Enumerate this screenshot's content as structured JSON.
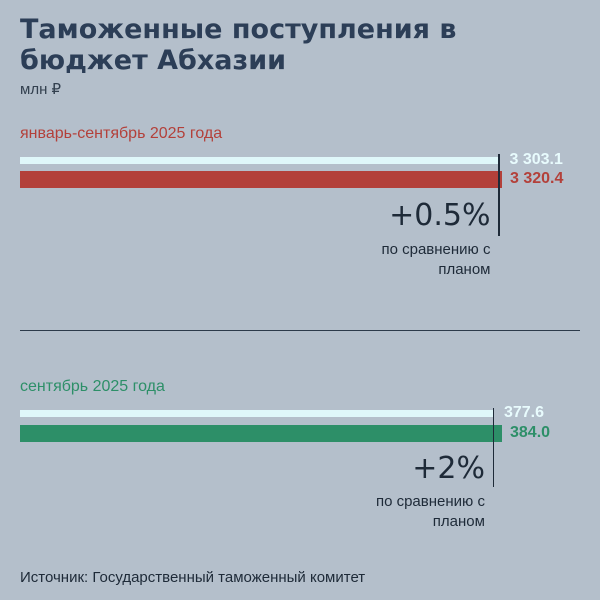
{
  "title": "Таможенные поступления в бюджет Абхазии",
  "unit": "млн ₽",
  "source": "Источник: Государственный таможенный комитет",
  "colors": {
    "background": "#b4bfcb",
    "plan": "#dff7fa",
    "period_ytd": "#b3403a",
    "period_month": "#2d8f68",
    "title": "#2c3e57"
  },
  "chart_data": [
    {
      "type": "bar",
      "title": "январь-сентябрь 2025 года",
      "orientation": "horizontal",
      "series": [
        {
          "values": [
            3303.1
          ],
          "label": "3 303.1",
          "color": "#dff7fa"
        },
        {
          "values": [
            3320.4
          ],
          "label": "3 320.4",
          "color": "#b3403a"
        }
      ],
      "annotation": {
        "value": "+0.5%",
        "text": "по сравнению с планом"
      }
    },
    {
      "type": "bar",
      "title": "сентябрь 2025 года",
      "orientation": "horizontal",
      "series": [
        {
          "values": [
            377.6
          ],
          "label": "377.6",
          "color": "#dff7fa"
        },
        {
          "values": [
            384.0
          ],
          "label": "384.0",
          "color": "#2d8f68"
        }
      ],
      "annotation": {
        "value": "+2%",
        "text": "по сравнению с планом"
      }
    }
  ]
}
